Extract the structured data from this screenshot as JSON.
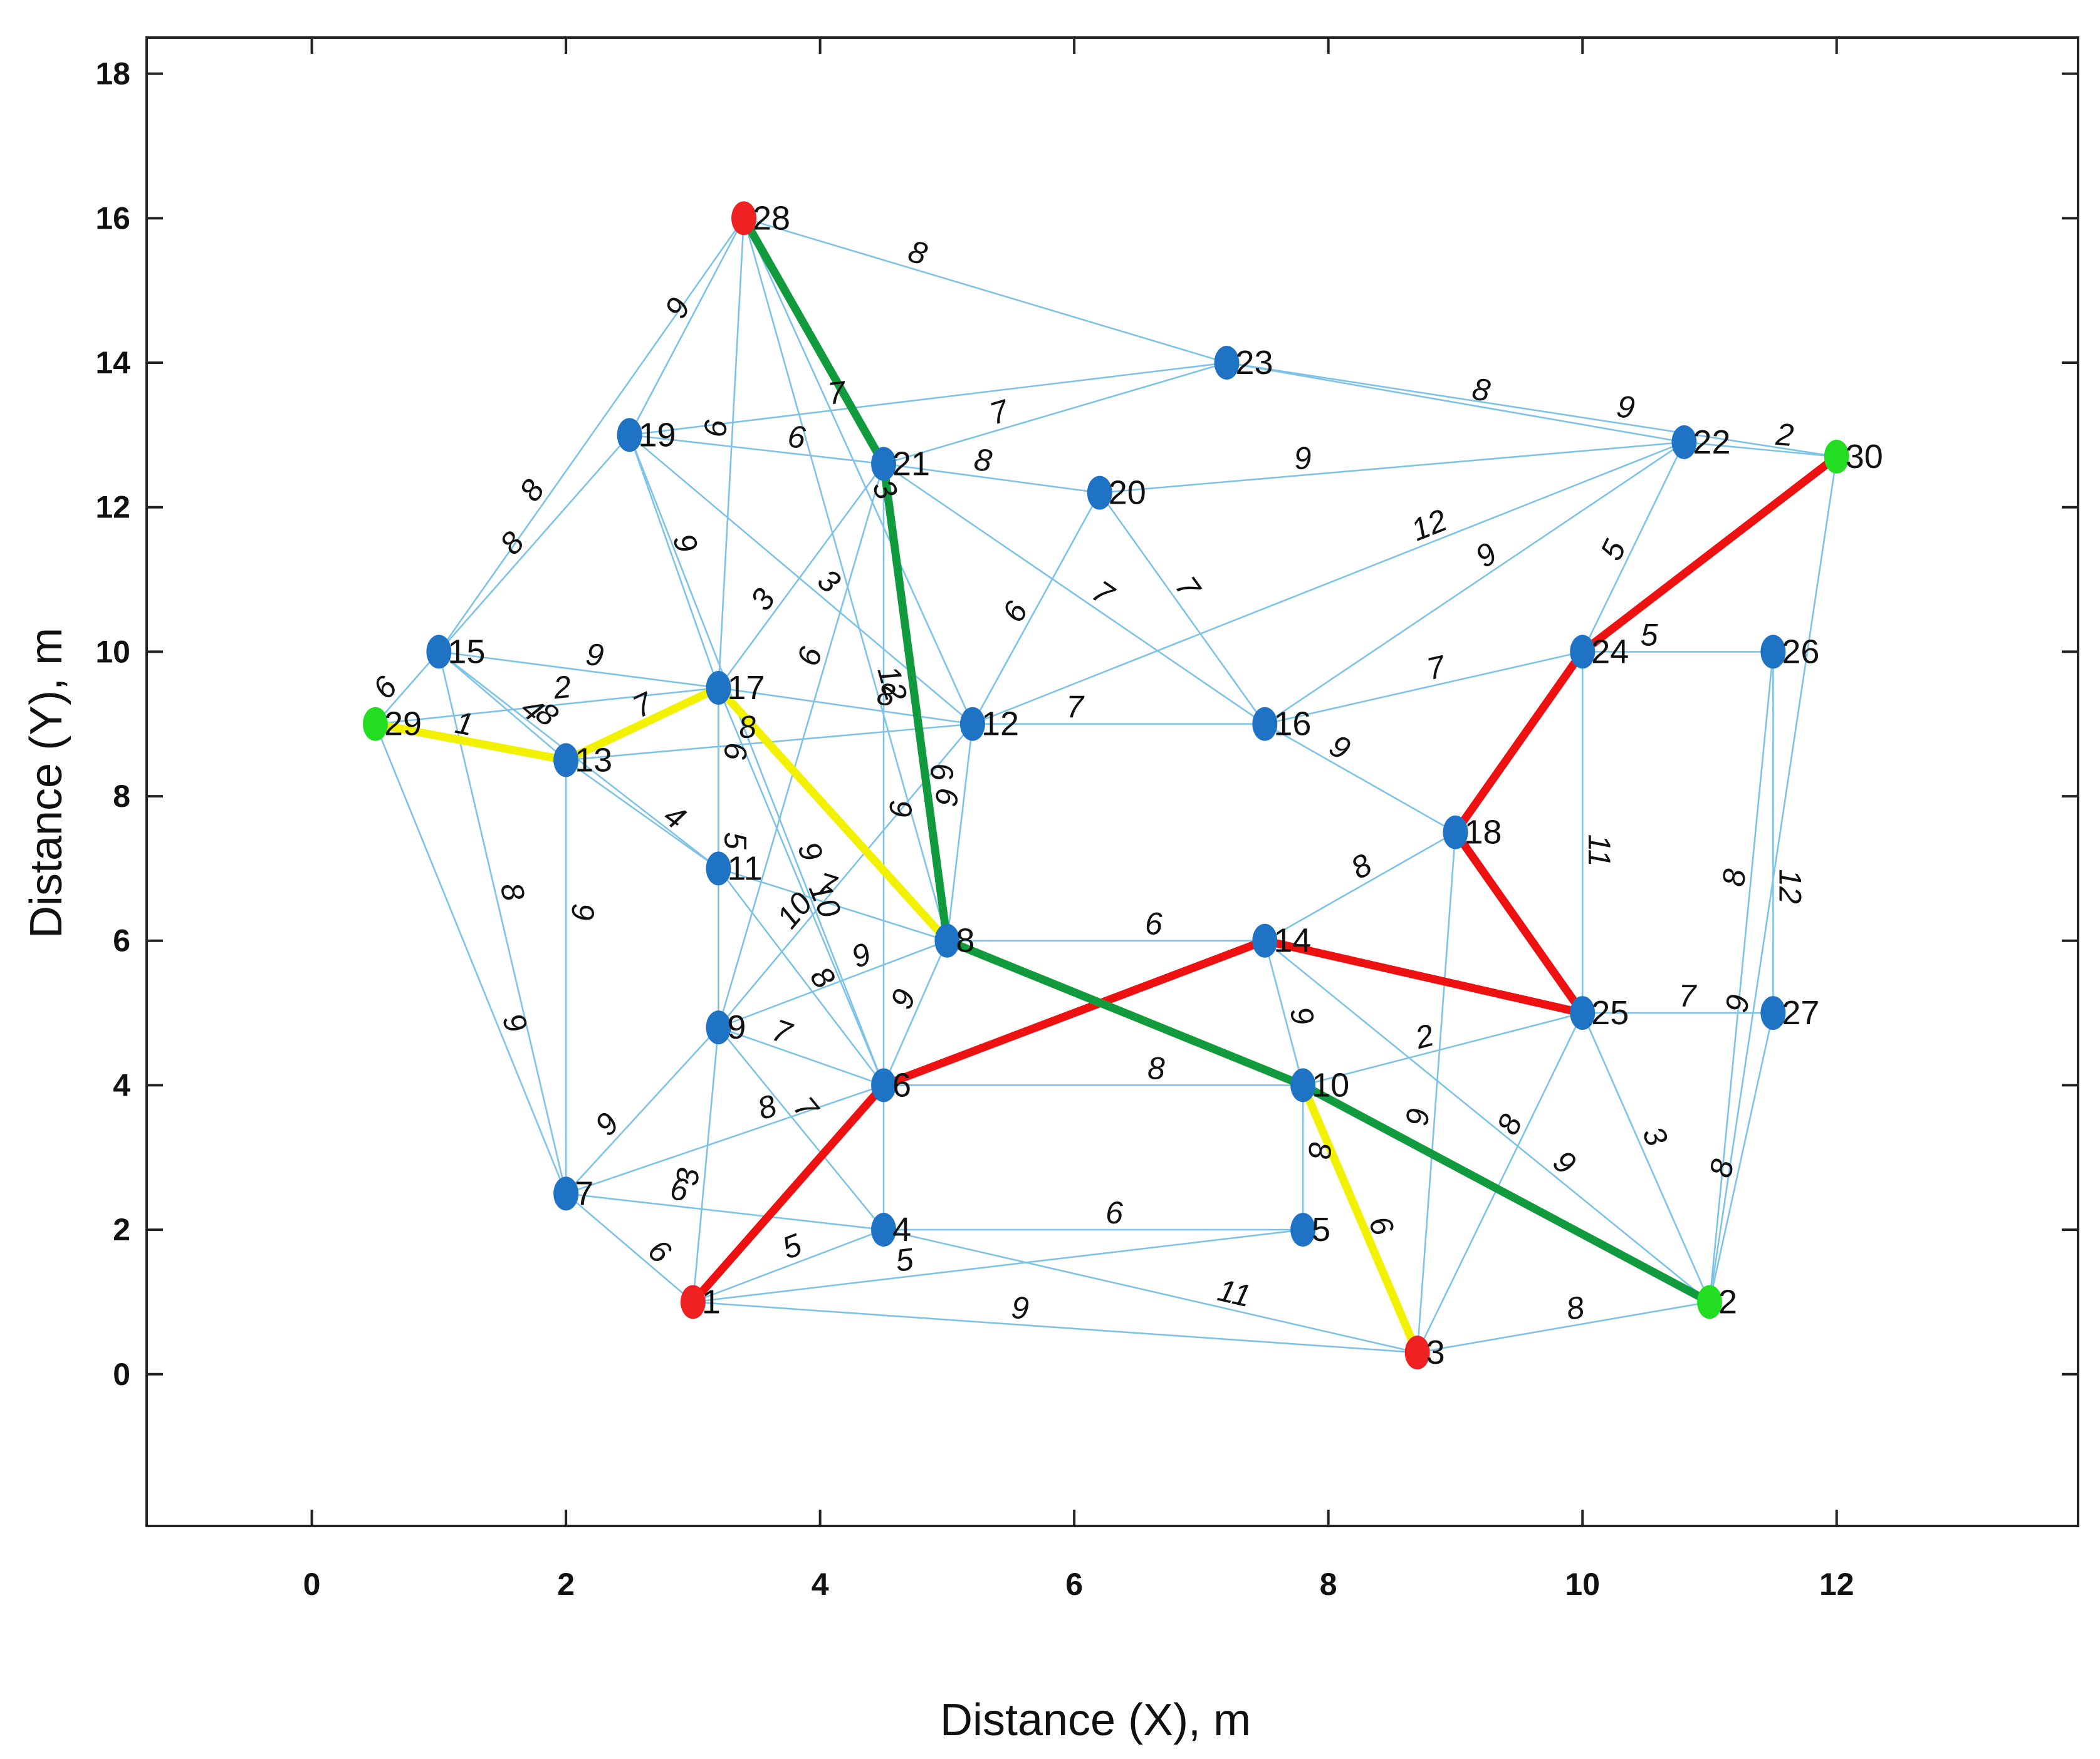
{
  "chart_data": {
    "type": "scatter",
    "xlabel": "Distance (X), m",
    "ylabel": "Distance (Y), m",
    "xlim": [
      -1.3,
      13.9
    ],
    "ylim": [
      -2.1,
      18.5
    ],
    "xticks": [
      0,
      2,
      4,
      6,
      8,
      10,
      12
    ],
    "yticks": [
      0,
      2,
      4,
      6,
      8,
      10,
      12,
      14,
      16,
      18
    ],
    "grid": false,
    "colors": {
      "edge": "#7ec3e6",
      "node": "#1f73c4",
      "node_red": "#ee2222",
      "node_green": "#22dd22",
      "path_red": "#ee1111",
      "path_yellow": "#f2f200",
      "path_green": "#129b3e"
    },
    "nodes": [
      {
        "id": "1",
        "x": 3.0,
        "y": 1.0,
        "color": "red"
      },
      {
        "id": "2",
        "x": 11.0,
        "y": 1.0,
        "color": "green"
      },
      {
        "id": "3",
        "x": 8.7,
        "y": 0.3,
        "color": "red"
      },
      {
        "id": "4",
        "x": 4.5,
        "y": 2.0,
        "color": "blue"
      },
      {
        "id": "5",
        "x": 7.8,
        "y": 2.0,
        "color": "blue"
      },
      {
        "id": "6",
        "x": 4.5,
        "y": 4.0,
        "color": "blue"
      },
      {
        "id": "7",
        "x": 2.0,
        "y": 2.5,
        "color": "blue"
      },
      {
        "id": "8",
        "x": 5.0,
        "y": 6.0,
        "color": "blue"
      },
      {
        "id": "9",
        "x": 3.2,
        "y": 4.8,
        "color": "blue"
      },
      {
        "id": "10",
        "x": 7.8,
        "y": 4.0,
        "color": "blue"
      },
      {
        "id": "11",
        "x": 3.2,
        "y": 7.0,
        "color": "blue"
      },
      {
        "id": "12",
        "x": 5.2,
        "y": 9.0,
        "color": "blue"
      },
      {
        "id": "13",
        "x": 2.0,
        "y": 8.5,
        "color": "blue"
      },
      {
        "id": "14",
        "x": 7.5,
        "y": 6.0,
        "color": "blue"
      },
      {
        "id": "15",
        "x": 1.0,
        "y": 10.0,
        "color": "blue"
      },
      {
        "id": "16",
        "x": 7.5,
        "y": 9.0,
        "color": "blue"
      },
      {
        "id": "17",
        "x": 3.2,
        "y": 9.5,
        "color": "blue"
      },
      {
        "id": "18",
        "x": 9.0,
        "y": 7.5,
        "color": "blue"
      },
      {
        "id": "19",
        "x": 2.5,
        "y": 13.0,
        "color": "blue"
      },
      {
        "id": "20",
        "x": 6.2,
        "y": 12.2,
        "color": "blue"
      },
      {
        "id": "21",
        "x": 4.5,
        "y": 12.6,
        "color": "blue"
      },
      {
        "id": "22",
        "x": 10.8,
        "y": 12.9,
        "color": "blue"
      },
      {
        "id": "23",
        "x": 7.2,
        "y": 14.0,
        "color": "blue"
      },
      {
        "id": "24",
        "x": 10.0,
        "y": 10.0,
        "color": "blue"
      },
      {
        "id": "25",
        "x": 10.0,
        "y": 5.0,
        "color": "blue"
      },
      {
        "id": "26",
        "x": 11.5,
        "y": 10.0,
        "color": "blue"
      },
      {
        "id": "27",
        "x": 11.5,
        "y": 5.0,
        "color": "blue"
      },
      {
        "id": "28",
        "x": 3.4,
        "y": 16.0,
        "color": "red"
      },
      {
        "id": "29",
        "x": 0.5,
        "y": 9.0,
        "color": "green"
      },
      {
        "id": "30",
        "x": 12.0,
        "y": 12.7,
        "color": "green"
      }
    ],
    "edges": [
      {
        "from": "29",
        "to": "15",
        "w": "6"
      },
      {
        "from": "29",
        "to": "13",
        "w": "1"
      },
      {
        "from": "29",
        "to": "17",
        "w": "2"
      },
      {
        "from": "29",
        "to": "7",
        "w": "9"
      },
      {
        "from": "15",
        "to": "28",
        "w": "8"
      },
      {
        "from": "15",
        "to": "19",
        "w": "8"
      },
      {
        "from": "15",
        "to": "17",
        "w": "9"
      },
      {
        "from": "15",
        "to": "13",
        "w": "4"
      },
      {
        "from": "15",
        "to": "11",
        "w": "8"
      },
      {
        "from": "15",
        "to": "7",
        "w": "8"
      },
      {
        "from": "13",
        "to": "17",
        "w": "7"
      },
      {
        "from": "13",
        "to": "11",
        "w": "4"
      },
      {
        "from": "13",
        "to": "7",
        "w": "9"
      },
      {
        "from": "13",
        "to": "12",
        "w": "8"
      },
      {
        "from": "19",
        "to": "28",
        "w": "9"
      },
      {
        "from": "19",
        "to": "21",
        "w": "6"
      },
      {
        "from": "19",
        "to": "23",
        "w": "7"
      },
      {
        "from": "19",
        "to": "17",
        "w": "9"
      },
      {
        "from": "19",
        "to": "12",
        "w": "3"
      },
      {
        "from": "19",
        "to": "6",
        "w": "9"
      },
      {
        "from": "28",
        "to": "23",
        "w": "8"
      },
      {
        "from": "28",
        "to": "17",
        "w": "6"
      },
      {
        "from": "28",
        "to": "12",
        "w": "3"
      },
      {
        "from": "28",
        "to": "8",
        "w": "12"
      },
      {
        "from": "21",
        "to": "23",
        "w": "7"
      },
      {
        "from": "21",
        "to": "20",
        "w": "8"
      },
      {
        "from": "21",
        "to": "16",
        "w": "7"
      },
      {
        "from": "21",
        "to": "17",
        "w": "3"
      },
      {
        "from": "21",
        "to": "9",
        "w": "6"
      },
      {
        "from": "21",
        "to": "4",
        "w": "9"
      },
      {
        "from": "23",
        "to": "22",
        "w": "8"
      },
      {
        "from": "23",
        "to": "30",
        "w": "9"
      },
      {
        "from": "20",
        "to": "22",
        "w": "9"
      },
      {
        "from": "20",
        "to": "16",
        "w": "7"
      },
      {
        "from": "20",
        "to": "12",
        "w": "6"
      },
      {
        "from": "22",
        "to": "30",
        "w": "2"
      },
      {
        "from": "22",
        "to": "12",
        "w": "12"
      },
      {
        "from": "22",
        "to": "16",
        "w": "9"
      },
      {
        "from": "22",
        "to": "24",
        "w": "5"
      },
      {
        "from": "30",
        "to": "2",
        "w": "9"
      },
      {
        "from": "24",
        "to": "26",
        "w": "5"
      },
      {
        "from": "24",
        "to": "16",
        "w": "7"
      },
      {
        "from": "24",
        "to": "25",
        "w": "11"
      },
      {
        "from": "26",
        "to": "27",
        "w": "12"
      },
      {
        "from": "26",
        "to": "2",
        "w": "8"
      },
      {
        "from": "27",
        "to": "25",
        "w": "7"
      },
      {
        "from": "27",
        "to": "2",
        "w": "8"
      },
      {
        "from": "16",
        "to": "12",
        "w": "7"
      },
      {
        "from": "16",
        "to": "18",
        "w": "9"
      },
      {
        "from": "18",
        "to": "14",
        "w": "8"
      },
      {
        "from": "18",
        "to": "3",
        "w": "9"
      },
      {
        "from": "17",
        "to": "12",
        "w": "8"
      },
      {
        "from": "17",
        "to": "11",
        "w": "6"
      },
      {
        "from": "17",
        "to": "9",
        "w": "5"
      },
      {
        "from": "17",
        "to": "6",
        "w": "10"
      },
      {
        "from": "12",
        "to": "9",
        "w": "10"
      },
      {
        "from": "12",
        "to": "8",
        "w": "9"
      },
      {
        "from": "11",
        "to": "8",
        "w": "7"
      },
      {
        "from": "11",
        "to": "6",
        "w": "8"
      },
      {
        "from": "8",
        "to": "14",
        "w": "6"
      },
      {
        "from": "8",
        "to": "9",
        "w": "9"
      },
      {
        "from": "8",
        "to": "6",
        "w": "9"
      },
      {
        "from": "14",
        "to": "10",
        "w": "9"
      },
      {
        "from": "14",
        "to": "2",
        "w": "9"
      },
      {
        "from": "25",
        "to": "3",
        "w": "8"
      },
      {
        "from": "25",
        "to": "2",
        "w": "3"
      },
      {
        "from": "25",
        "to": "10",
        "w": "2"
      },
      {
        "from": "9",
        "to": "7",
        "w": "9"
      },
      {
        "from": "9",
        "to": "6",
        "w": "7"
      },
      {
        "from": "9",
        "to": "4",
        "w": "7"
      },
      {
        "from": "9",
        "to": "1",
        "w": "3"
      },
      {
        "from": "6",
        "to": "10",
        "w": "8"
      },
      {
        "from": "6",
        "to": "7",
        "w": "8"
      },
      {
        "from": "10",
        "to": "5",
        "w": "8"
      },
      {
        "from": "10",
        "to": "3",
        "w": "6"
      },
      {
        "from": "7",
        "to": "1",
        "w": "6"
      },
      {
        "from": "7",
        "to": "4",
        "w": "6"
      },
      {
        "from": "4",
        "to": "1",
        "w": "5"
      },
      {
        "from": "4",
        "to": "5",
        "w": "6"
      },
      {
        "from": "4",
        "to": "3",
        "w": "11"
      },
      {
        "from": "1",
        "to": "5",
        "w": "5"
      },
      {
        "from": "1",
        "to": "3",
        "w": "9"
      },
      {
        "from": "3",
        "to": "2",
        "w": "8"
      },
      {
        "from": "21",
        "to": "8",
        "w": "6"
      }
    ],
    "paths": [
      {
        "color": "red",
        "nodes": [
          "1",
          "6",
          "14",
          "25",
          "18",
          "24",
          "30"
        ]
      },
      {
        "color": "yellow",
        "nodes": [
          "29",
          "13",
          "17",
          "8",
          "10",
          "3"
        ]
      },
      {
        "color": "green",
        "nodes": [
          "28",
          "21",
          "8",
          "10",
          "2"
        ]
      }
    ]
  }
}
